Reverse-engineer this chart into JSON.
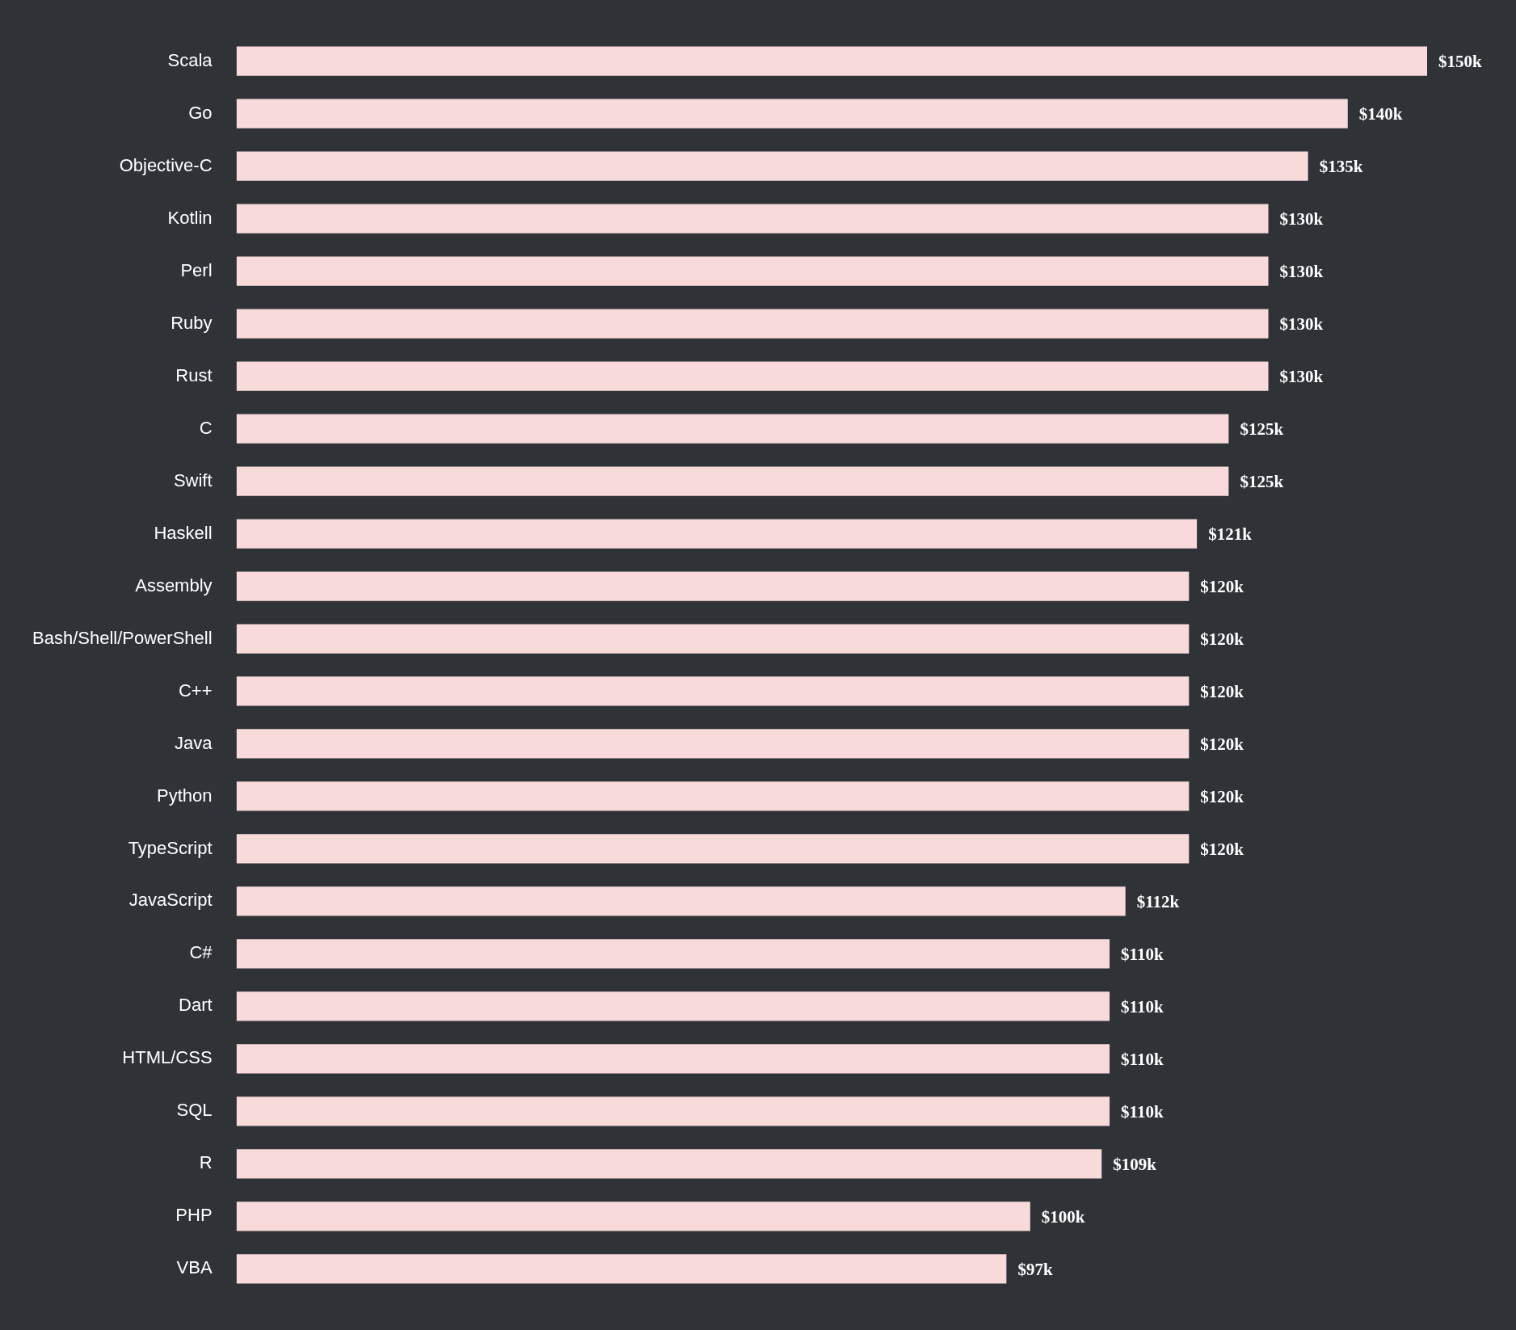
{
  "chart_data": {
    "type": "bar",
    "orientation": "horizontal",
    "categories": [
      "Scala",
      "Go",
      "Objective-C",
      "Kotlin",
      "Perl",
      "Ruby",
      "Rust",
      "C",
      "Swift",
      "Haskell",
      "Assembly",
      "Bash/Shell/PowerShell",
      "C++",
      "Java",
      "Python",
      "TypeScript",
      "JavaScript",
      "C#",
      "Dart",
      "HTML/CSS",
      "SQL",
      "R",
      "PHP",
      "VBA"
    ],
    "values": [
      150,
      140,
      135,
      130,
      130,
      130,
      130,
      125,
      125,
      121,
      120,
      120,
      120,
      120,
      120,
      120,
      112,
      110,
      110,
      110,
      110,
      109,
      100,
      97
    ],
    "value_labels": [
      "$150k",
      "$140k",
      "$135k",
      "$130k",
      "$130k",
      "$130k",
      "$130k",
      "$125k",
      "$125k",
      "$121k",
      "$120k",
      "$120k",
      "$120k",
      "$120k",
      "$120k",
      "$120k",
      "$112k",
      "$110k",
      "$110k",
      "$110k",
      "$110k",
      "$109k",
      "$100k",
      "$97k"
    ],
    "color": "#f8dada",
    "xlim": [
      0,
      150
    ],
    "tick_labels": "y",
    "legend": false
  }
}
